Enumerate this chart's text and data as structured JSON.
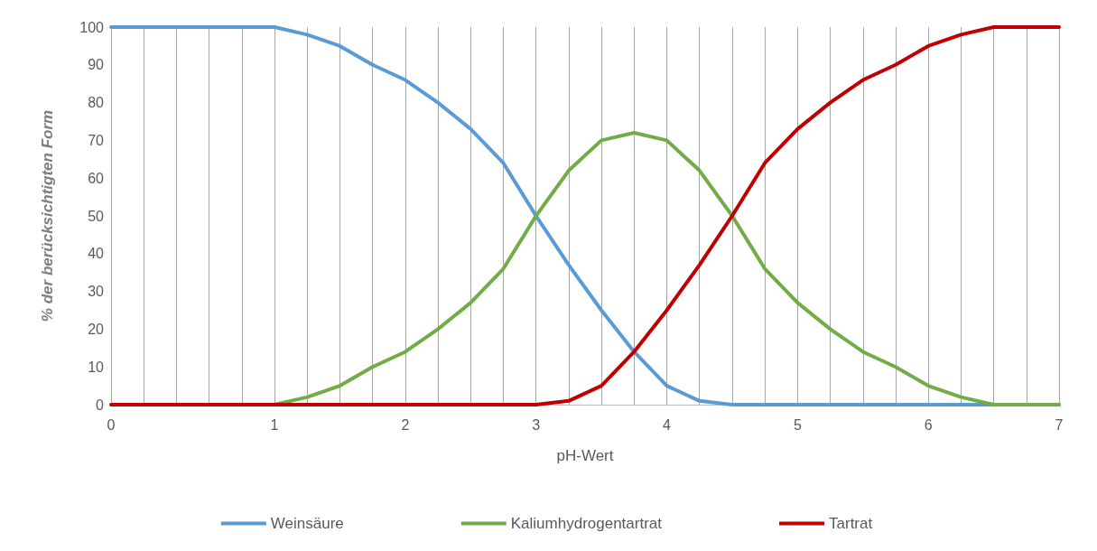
{
  "chart_data": {
    "type": "line",
    "xlabel": "pH-Wert",
    "ylabel": "% der berücksichtigten Form",
    "categories": [
      "0",
      null,
      null,
      null,
      null,
      "1",
      null,
      null,
      null,
      "2",
      null,
      null,
      null,
      "3",
      null,
      null,
      null,
      "4",
      null,
      null,
      null,
      "5",
      null,
      null,
      null,
      "6",
      null,
      null,
      null,
      "7"
    ],
    "series": [
      {
        "name": "Weinsäure",
        "color": "#5b9bd5",
        "values": [
          100,
          100,
          100,
          100,
          100,
          100,
          98,
          95,
          90,
          86,
          80,
          73,
          64,
          50,
          37,
          25,
          14,
          5,
          1,
          0,
          0,
          0,
          0,
          0,
          0,
          0,
          0,
          0,
          0,
          0
        ]
      },
      {
        "name": "Kaliumhydrogentartrat",
        "color": "#70ad47",
        "values": [
          null,
          null,
          null,
          null,
          null,
          0,
          2,
          5,
          10,
          14,
          20,
          27,
          36,
          50,
          62,
          70,
          72,
          70,
          62,
          50,
          36,
          27,
          20,
          14,
          10,
          5,
          2,
          0,
          0,
          0
        ]
      },
      {
        "name": "Tartrat",
        "color": "#c00000",
        "values": [
          0,
          0,
          0,
          0,
          0,
          0,
          0,
          0,
          0,
          0,
          0,
          0,
          0,
          0,
          1,
          5,
          14,
          25,
          37,
          50,
          64,
          73,
          80,
          86,
          90,
          95,
          98,
          100,
          100,
          100
        ]
      }
    ],
    "ylim": [
      0,
      100
    ],
    "yticks": [
      0,
      10,
      20,
      30,
      40,
      50,
      60,
      70,
      80,
      90,
      100
    ],
    "grid": "x",
    "legend": "bottom",
    "marker": "none",
    "line_style": "solid"
  }
}
